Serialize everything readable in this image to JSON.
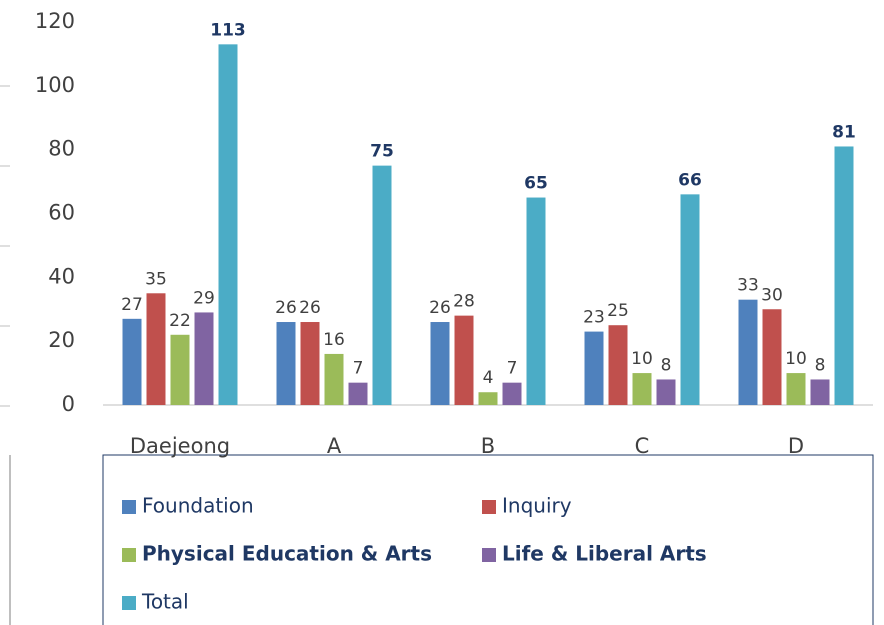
{
  "chart_data": {
    "type": "bar",
    "categories": [
      "Daejeong",
      "A",
      "B",
      "C",
      "D"
    ],
    "series": [
      {
        "name": "Foundation",
        "color": "#4f81bd",
        "values": [
          27,
          26,
          26,
          23,
          33
        ]
      },
      {
        "name": "Inquiry",
        "color": "#c0504d",
        "values": [
          35,
          26,
          28,
          25,
          30
        ]
      },
      {
        "name": "Physical Education & Arts",
        "color": "#9bbb59",
        "values": [
          22,
          16,
          4,
          10,
          10
        ],
        "legend_bold": true
      },
      {
        "name": "Life & Liberal Arts",
        "color": "#8064a2",
        "values": [
          29,
          7,
          7,
          8,
          8
        ],
        "legend_bold": true
      },
      {
        "name": "Total",
        "color": "#4bacc6",
        "values": [
          113,
          75,
          65,
          66,
          81
        ],
        "label_bold": true
      }
    ],
    "ylim": [
      0,
      120
    ],
    "yticks": [
      0,
      20,
      40,
      60,
      80,
      100,
      120
    ],
    "grid": false,
    "legend": "bottom"
  }
}
